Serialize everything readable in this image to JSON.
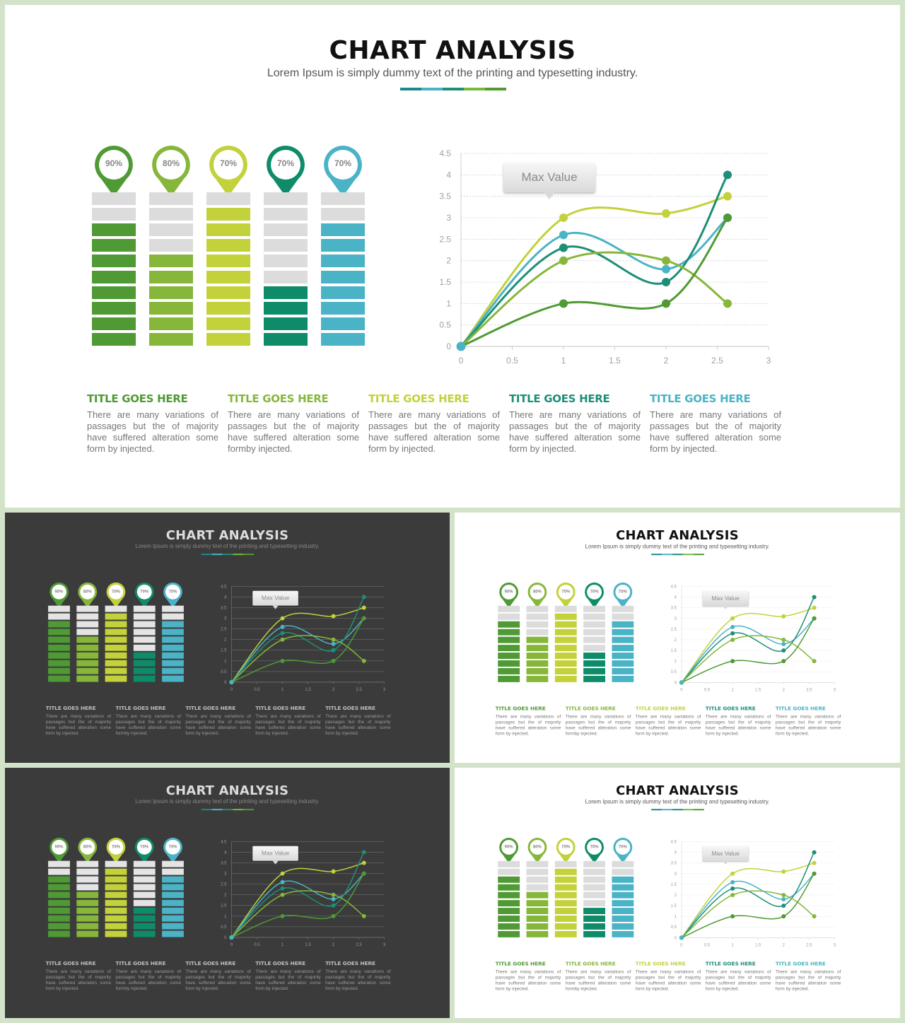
{
  "slide": {
    "title": "CHART ANALYSIS",
    "subtitle": "Lorem Ipsum is simply dummy text of the printing and typesetting industry.",
    "separator_colors": [
      "#1b8a8d",
      "#4bb3c6",
      "#1e8e77",
      "#79b83d",
      "#4f9a35"
    ],
    "max_value_label": "Max Value"
  },
  "progress": [
    {
      "label": "90%",
      "value": 90,
      "color": "#4f9a35",
      "filled_segments": 8
    },
    {
      "label": "80%",
      "value": 80,
      "color": "#86b73b",
      "filled_segments": 6
    },
    {
      "label": "70%",
      "value": 70,
      "color": "#c3d13a",
      "filled_segments": 9
    },
    {
      "label": "70%",
      "value": 70,
      "color": "#0e8c6a",
      "filled_segments": 4
    },
    {
      "label": "70%",
      "value": 70,
      "color": "#4bb3c6",
      "filled_segments": 8
    }
  ],
  "columns": [
    {
      "title": "TITLE GOES HERE",
      "body": "There are many variations of passages but the of majority have suffered alteration some form by injected.",
      "color": "#4f9a35"
    },
    {
      "title": "TITLE GOES HERE",
      "body": "There are many variations of passages but the of majority have suffered alteration some formby injected.",
      "color": "#86b73b"
    },
    {
      "title": "TITLE GOES HERE",
      "body": "There are many variations of passages but the of majority have suffered alteration some form by injected.",
      "color": "#c3d13a"
    },
    {
      "title": "TITLE GOES HERE",
      "body": "There are many variations of passages but the of majority have suffered alteration some form by injected.",
      "color": "#1e8e77"
    },
    {
      "title": "TITLE GOES HERE",
      "body": "There are many variations of passages but the of majority have suffered alteration some form by injected.",
      "color": "#4bb3c6"
    }
  ],
  "chart_data": {
    "type": "line",
    "xlim": [
      0,
      3
    ],
    "ylim": [
      0,
      4.5
    ],
    "x_ticks": [
      "0",
      "0.5",
      "1",
      "1.5",
      "2",
      "2.5",
      "3"
    ],
    "y_ticks": [
      "0",
      "0.5",
      "1",
      "1.5",
      "2",
      "2.5",
      "3",
      "3.5",
      "4",
      "4.5"
    ],
    "grid": true,
    "annotation": "Max Value",
    "series": [
      {
        "color": "#c3d13a",
        "points": [
          [
            0,
            0
          ],
          [
            1,
            3
          ],
          [
            2,
            3.1
          ],
          [
            2.6,
            3.5
          ]
        ]
      },
      {
        "color": "#4bb3c6",
        "points": [
          [
            0,
            0
          ],
          [
            1,
            2.6
          ],
          [
            2,
            1.8
          ],
          [
            2.6,
            3
          ]
        ]
      },
      {
        "color": "#1e8e77",
        "points": [
          [
            0,
            0
          ],
          [
            1,
            2.3
          ],
          [
            2,
            1.5
          ],
          [
            2.6,
            4
          ]
        ]
      },
      {
        "color": "#86b73b",
        "points": [
          [
            0,
            0
          ],
          [
            1,
            2
          ],
          [
            2,
            2
          ],
          [
            2.6,
            1
          ]
        ]
      },
      {
        "color": "#4f9a35",
        "points": [
          [
            0,
            0
          ],
          [
            1,
            1
          ],
          [
            2,
            1
          ],
          [
            2.6,
            3
          ]
        ]
      }
    ]
  }
}
